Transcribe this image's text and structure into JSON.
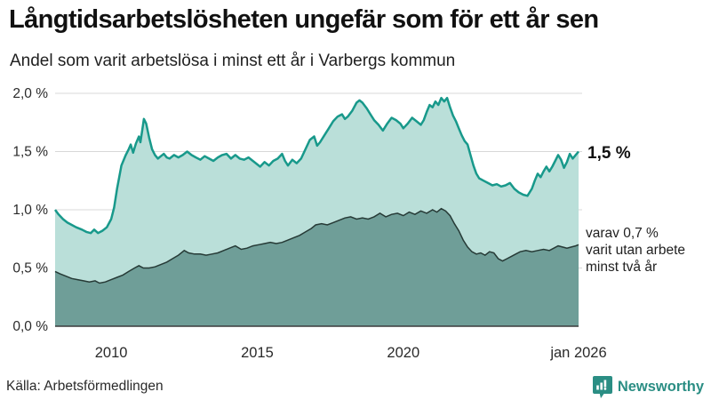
{
  "chart_data": {
    "type": "area",
    "title": "Långtidsarbetslösheten ungefär som för ett år sen",
    "subtitle": "Andel som varit arbetslösa i minst ett år i Varbergs kommun",
    "xlabel": "",
    "ylabel": "",
    "xlim": [
      2008.08,
      2026.0
    ],
    "ylim": [
      0,
      2.0
    ],
    "grid": true,
    "colors": {
      "line_primary": "#18998b",
      "fill_primary": "#badfd9",
      "line_secondary": "#263a36",
      "fill_secondary": "#6f9e98",
      "gridline": "#d8d8d8",
      "baseline": "#3c3c3c",
      "tick_text": "#2a2a2a",
      "brand_teal": "#2b8e84"
    },
    "x_ticks": [
      {
        "label": "2010",
        "year": 2010
      },
      {
        "label": "2015",
        "year": 2015
      },
      {
        "label": "2020",
        "year": 2020
      },
      {
        "label": "jan 2026",
        "year": 2026
      }
    ],
    "y_ticks": [
      {
        "label": "0,0 %",
        "value": 0
      },
      {
        "label": "0,5 %",
        "value": 0.5
      },
      {
        "label": "1,0 %",
        "value": 1.0
      },
      {
        "label": "1,5 %",
        "value": 1.5
      },
      {
        "label": "2,0 %",
        "value": 2.0
      }
    ],
    "annotations": {
      "latest_value": "1,5 %",
      "note_lines": [
        "varav 0,7 %",
        "varit utan arbete",
        "minst två år"
      ]
    },
    "series": [
      {
        "name": "Arbetslösa minst ett år",
        "latest_value_pct": 1.5,
        "points": [
          [
            2008.08,
            1.0
          ],
          [
            2008.2,
            0.96
          ],
          [
            2008.35,
            0.92
          ],
          [
            2008.5,
            0.89
          ],
          [
            2008.65,
            0.87
          ],
          [
            2008.8,
            0.85
          ],
          [
            2009.0,
            0.83
          ],
          [
            2009.15,
            0.81
          ],
          [
            2009.3,
            0.8
          ],
          [
            2009.42,
            0.83
          ],
          [
            2009.55,
            0.8
          ],
          [
            2009.7,
            0.82
          ],
          [
            2009.85,
            0.85
          ],
          [
            2010.0,
            0.92
          ],
          [
            2010.1,
            1.02
          ],
          [
            2010.2,
            1.18
          ],
          [
            2010.35,
            1.38
          ],
          [
            2010.5,
            1.47
          ],
          [
            2010.6,
            1.52
          ],
          [
            2010.67,
            1.56
          ],
          [
            2010.75,
            1.49
          ],
          [
            2010.85,
            1.57
          ],
          [
            2010.95,
            1.63
          ],
          [
            2011.0,
            1.58
          ],
          [
            2011.05,
            1.66
          ],
          [
            2011.12,
            1.78
          ],
          [
            2011.2,
            1.74
          ],
          [
            2011.3,
            1.62
          ],
          [
            2011.4,
            1.52
          ],
          [
            2011.5,
            1.47
          ],
          [
            2011.6,
            1.44
          ],
          [
            2011.7,
            1.46
          ],
          [
            2011.8,
            1.48
          ],
          [
            2011.9,
            1.45
          ],
          [
            2012.0,
            1.44
          ],
          [
            2012.15,
            1.47
          ],
          [
            2012.3,
            1.45
          ],
          [
            2012.45,
            1.47
          ],
          [
            2012.6,
            1.5
          ],
          [
            2012.75,
            1.47
          ],
          [
            2012.9,
            1.45
          ],
          [
            2013.05,
            1.43
          ],
          [
            2013.2,
            1.46
          ],
          [
            2013.35,
            1.44
          ],
          [
            2013.5,
            1.42
          ],
          [
            2013.65,
            1.45
          ],
          [
            2013.8,
            1.47
          ],
          [
            2013.95,
            1.48
          ],
          [
            2014.1,
            1.44
          ],
          [
            2014.25,
            1.47
          ],
          [
            2014.4,
            1.44
          ],
          [
            2014.55,
            1.43
          ],
          [
            2014.7,
            1.45
          ],
          [
            2014.85,
            1.42
          ],
          [
            2015.0,
            1.39
          ],
          [
            2015.1,
            1.37
          ],
          [
            2015.25,
            1.41
          ],
          [
            2015.4,
            1.38
          ],
          [
            2015.55,
            1.42
          ],
          [
            2015.7,
            1.44
          ],
          [
            2015.85,
            1.48
          ],
          [
            2015.95,
            1.42
          ],
          [
            2016.05,
            1.38
          ],
          [
            2016.2,
            1.43
          ],
          [
            2016.35,
            1.4
          ],
          [
            2016.5,
            1.44
          ],
          [
            2016.65,
            1.52
          ],
          [
            2016.8,
            1.6
          ],
          [
            2016.95,
            1.63
          ],
          [
            2017.05,
            1.55
          ],
          [
            2017.15,
            1.58
          ],
          [
            2017.3,
            1.64
          ],
          [
            2017.45,
            1.7
          ],
          [
            2017.6,
            1.76
          ],
          [
            2017.75,
            1.8
          ],
          [
            2017.9,
            1.82
          ],
          [
            2018.0,
            1.78
          ],
          [
            2018.1,
            1.8
          ],
          [
            2018.25,
            1.85
          ],
          [
            2018.4,
            1.92
          ],
          [
            2018.5,
            1.94
          ],
          [
            2018.6,
            1.92
          ],
          [
            2018.75,
            1.87
          ],
          [
            2018.9,
            1.81
          ],
          [
            2019.0,
            1.77
          ],
          [
            2019.15,
            1.73
          ],
          [
            2019.3,
            1.68
          ],
          [
            2019.45,
            1.74
          ],
          [
            2019.6,
            1.79
          ],
          [
            2019.75,
            1.77
          ],
          [
            2019.9,
            1.74
          ],
          [
            2020.0,
            1.7
          ],
          [
            2020.15,
            1.74
          ],
          [
            2020.3,
            1.79
          ],
          [
            2020.45,
            1.76
          ],
          [
            2020.6,
            1.73
          ],
          [
            2020.7,
            1.77
          ],
          [
            2020.8,
            1.84
          ],
          [
            2020.9,
            1.9
          ],
          [
            2021.0,
            1.88
          ],
          [
            2021.1,
            1.93
          ],
          [
            2021.2,
            1.9
          ],
          [
            2021.3,
            1.96
          ],
          [
            2021.4,
            1.93
          ],
          [
            2021.5,
            1.96
          ],
          [
            2021.6,
            1.88
          ],
          [
            2021.7,
            1.81
          ],
          [
            2021.8,
            1.76
          ],
          [
            2021.9,
            1.7
          ],
          [
            2022.0,
            1.64
          ],
          [
            2022.1,
            1.59
          ],
          [
            2022.2,
            1.56
          ],
          [
            2022.3,
            1.47
          ],
          [
            2022.4,
            1.38
          ],
          [
            2022.5,
            1.31
          ],
          [
            2022.6,
            1.27
          ],
          [
            2022.75,
            1.25
          ],
          [
            2022.9,
            1.23
          ],
          [
            2023.05,
            1.21
          ],
          [
            2023.2,
            1.22
          ],
          [
            2023.35,
            1.2
          ],
          [
            2023.5,
            1.21
          ],
          [
            2023.65,
            1.23
          ],
          [
            2023.8,
            1.18
          ],
          [
            2023.95,
            1.15
          ],
          [
            2024.1,
            1.13
          ],
          [
            2024.25,
            1.12
          ],
          [
            2024.4,
            1.18
          ],
          [
            2024.5,
            1.25
          ],
          [
            2024.6,
            1.31
          ],
          [
            2024.7,
            1.28
          ],
          [
            2024.8,
            1.33
          ],
          [
            2024.9,
            1.37
          ],
          [
            2025.0,
            1.33
          ],
          [
            2025.1,
            1.37
          ],
          [
            2025.2,
            1.42
          ],
          [
            2025.3,
            1.47
          ],
          [
            2025.4,
            1.43
          ],
          [
            2025.5,
            1.36
          ],
          [
            2025.6,
            1.41
          ],
          [
            2025.7,
            1.48
          ],
          [
            2025.8,
            1.44
          ],
          [
            2025.9,
            1.47
          ],
          [
            2026.0,
            1.5
          ]
        ]
      },
      {
        "name": "Arbetslösa minst två år",
        "latest_value_pct": 0.7,
        "points": [
          [
            2008.08,
            0.47
          ],
          [
            2008.25,
            0.45
          ],
          [
            2008.45,
            0.43
          ],
          [
            2008.65,
            0.41
          ],
          [
            2008.85,
            0.4
          ],
          [
            2009.05,
            0.39
          ],
          [
            2009.25,
            0.38
          ],
          [
            2009.45,
            0.39
          ],
          [
            2009.6,
            0.37
          ],
          [
            2009.8,
            0.38
          ],
          [
            2010.0,
            0.4
          ],
          [
            2010.2,
            0.42
          ],
          [
            2010.4,
            0.44
          ],
          [
            2010.6,
            0.47
          ],
          [
            2010.8,
            0.5
          ],
          [
            2010.95,
            0.52
          ],
          [
            2011.1,
            0.5
          ],
          [
            2011.3,
            0.5
          ],
          [
            2011.5,
            0.51
          ],
          [
            2011.7,
            0.53
          ],
          [
            2011.9,
            0.55
          ],
          [
            2012.1,
            0.58
          ],
          [
            2012.3,
            0.61
          ],
          [
            2012.5,
            0.65
          ],
          [
            2012.65,
            0.63
          ],
          [
            2012.85,
            0.62
          ],
          [
            2013.05,
            0.62
          ],
          [
            2013.25,
            0.61
          ],
          [
            2013.45,
            0.62
          ],
          [
            2013.65,
            0.63
          ],
          [
            2013.85,
            0.65
          ],
          [
            2014.05,
            0.67
          ],
          [
            2014.25,
            0.69
          ],
          [
            2014.45,
            0.66
          ],
          [
            2014.65,
            0.67
          ],
          [
            2014.85,
            0.69
          ],
          [
            2015.05,
            0.7
          ],
          [
            2015.25,
            0.71
          ],
          [
            2015.45,
            0.72
          ],
          [
            2015.65,
            0.71
          ],
          [
            2015.85,
            0.72
          ],
          [
            2016.05,
            0.74
          ],
          [
            2016.25,
            0.76
          ],
          [
            2016.45,
            0.78
          ],
          [
            2016.65,
            0.81
          ],
          [
            2016.85,
            0.84
          ],
          [
            2017.0,
            0.87
          ],
          [
            2017.2,
            0.88
          ],
          [
            2017.4,
            0.87
          ],
          [
            2017.6,
            0.89
          ],
          [
            2017.8,
            0.91
          ],
          [
            2018.0,
            0.93
          ],
          [
            2018.2,
            0.94
          ],
          [
            2018.4,
            0.92
          ],
          [
            2018.6,
            0.93
          ],
          [
            2018.8,
            0.92
          ],
          [
            2019.0,
            0.94
          ],
          [
            2019.2,
            0.97
          ],
          [
            2019.4,
            0.94
          ],
          [
            2019.6,
            0.96
          ],
          [
            2019.8,
            0.97
          ],
          [
            2020.0,
            0.95
          ],
          [
            2020.2,
            0.98
          ],
          [
            2020.4,
            0.96
          ],
          [
            2020.6,
            0.99
          ],
          [
            2020.8,
            0.97
          ],
          [
            2021.0,
            1.0
          ],
          [
            2021.15,
            0.98
          ],
          [
            2021.3,
            1.01
          ],
          [
            2021.45,
            0.99
          ],
          [
            2021.6,
            0.95
          ],
          [
            2021.75,
            0.88
          ],
          [
            2021.9,
            0.82
          ],
          [
            2022.05,
            0.74
          ],
          [
            2022.2,
            0.68
          ],
          [
            2022.35,
            0.64
          ],
          [
            2022.5,
            0.62
          ],
          [
            2022.65,
            0.63
          ],
          [
            2022.8,
            0.61
          ],
          [
            2022.95,
            0.64
          ],
          [
            2023.1,
            0.63
          ],
          [
            2023.25,
            0.58
          ],
          [
            2023.4,
            0.56
          ],
          [
            2023.55,
            0.58
          ],
          [
            2023.7,
            0.6
          ],
          [
            2023.85,
            0.62
          ],
          [
            2024.0,
            0.64
          ],
          [
            2024.2,
            0.65
          ],
          [
            2024.4,
            0.64
          ],
          [
            2024.6,
            0.65
          ],
          [
            2024.8,
            0.66
          ],
          [
            2025.0,
            0.65
          ],
          [
            2025.15,
            0.67
          ],
          [
            2025.3,
            0.69
          ],
          [
            2025.45,
            0.68
          ],
          [
            2025.6,
            0.67
          ],
          [
            2025.75,
            0.68
          ],
          [
            2025.9,
            0.69
          ],
          [
            2026.0,
            0.7
          ]
        ]
      }
    ]
  },
  "footer": {
    "source": "Källa: Arbetsförmedlingen",
    "brand": "Newsworthy"
  }
}
